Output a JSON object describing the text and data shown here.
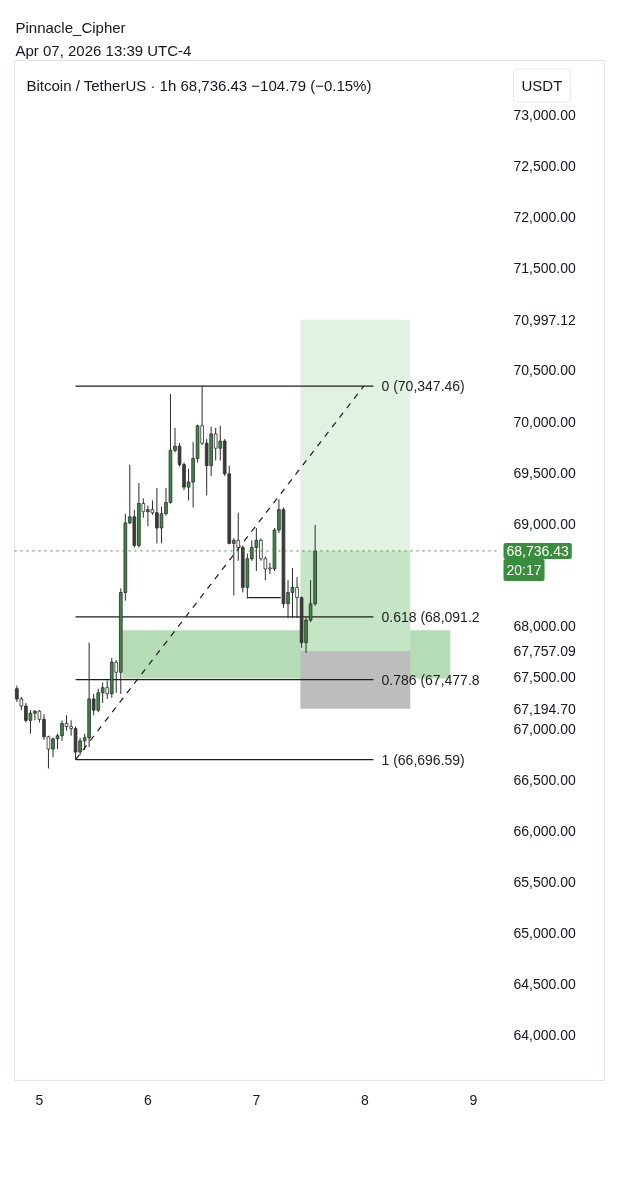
{
  "chart_data": {
    "type": "candlestick",
    "title": "Bitcoin / TetherUS · 1h 68,736.43 −104.79 (−0.15%)",
    "ylabel": "USDT",
    "annotations": [
      "Pinnacle_Cipher",
      "Apr 07, 2026 13:39 UTC-4"
    ],
    "x": [
      4.792,
      4.833,
      4.875,
      4.917,
      4.958,
      5.0,
      5.042,
      5.083,
      5.125,
      5.167,
      5.208,
      5.25,
      5.292,
      5.333,
      5.375,
      5.417,
      5.458,
      5.5,
      5.542,
      5.583,
      5.625,
      5.667,
      5.708,
      5.75,
      5.792,
      5.833,
      5.875,
      5.917,
      5.958,
      6.0,
      6.042,
      6.083,
      6.125,
      6.167,
      6.208,
      6.25,
      6.292,
      6.333,
      6.375,
      6.417,
      6.458,
      6.5,
      6.542,
      6.583,
      6.625,
      6.667,
      6.708,
      6.75,
      6.792,
      6.833,
      6.875,
      6.917,
      6.958,
      7.0,
      7.042,
      7.083,
      7.125,
      7.167,
      7.208,
      7.25,
      7.292,
      7.333,
      7.375,
      7.417,
      7.458,
      7.5,
      7.542
    ],
    "ohlc": [
      [
        67390,
        67420,
        67260,
        67290
      ],
      [
        67290,
        67310,
        67180,
        67220
      ],
      [
        67220,
        67250,
        67060,
        67080
      ],
      [
        67080,
        67180,
        66950,
        67150
      ],
      [
        67150,
        67180,
        67080,
        67170
      ],
      [
        67170,
        67180,
        67060,
        67090
      ],
      [
        67090,
        67140,
        66890,
        66920
      ],
      [
        66920,
        66930,
        66610,
        66800
      ],
      [
        66800,
        66910,
        66720,
        66900
      ],
      [
        66900,
        66950,
        66800,
        66930
      ],
      [
        66930,
        67080,
        66880,
        67050
      ],
      [
        67050,
        67130,
        66980,
        67020
      ],
      [
        67020,
        67080,
        66930,
        67000
      ],
      [
        67000,
        67020,
        66700,
        66770
      ],
      [
        66770,
        66910,
        66740,
        66880
      ],
      [
        66880,
        66950,
        66790,
        66910
      ],
      [
        66910,
        67840,
        66820,
        67290
      ],
      [
        67290,
        67340,
        67130,
        67180
      ],
      [
        67180,
        67390,
        67160,
        67350
      ],
      [
        67350,
        67450,
        67250,
        67400
      ],
      [
        67400,
        67470,
        67290,
        67340
      ],
      [
        67340,
        67690,
        67300,
        67650
      ],
      [
        67650,
        67670,
        67350,
        67550
      ],
      [
        67550,
        68370,
        67340,
        68330
      ],
      [
        68330,
        69100,
        68250,
        69010
      ],
      [
        69010,
        69580,
        69000,
        69070
      ],
      [
        69070,
        69140,
        68770,
        68790
      ],
      [
        68790,
        69400,
        68770,
        69200
      ],
      [
        69200,
        69250,
        69060,
        69120
      ],
      [
        69120,
        69180,
        68980,
        69140
      ],
      [
        69140,
        69230,
        69090,
        69110
      ],
      [
        69110,
        69350,
        68810,
        68960
      ],
      [
        68960,
        69170,
        68810,
        69100
      ],
      [
        69100,
        69350,
        69080,
        69210
      ],
      [
        69210,
        70270,
        69200,
        69720
      ],
      [
        69720,
        69940,
        69700,
        69760
      ],
      [
        69760,
        69790,
        69560,
        69580
      ],
      [
        69580,
        69600,
        69330,
        69360
      ],
      [
        69360,
        69540,
        69230,
        69410
      ],
      [
        69410,
        69800,
        69160,
        69640
      ],
      [
        69640,
        69970,
        69600,
        69960
      ],
      [
        69960,
        70350,
        69770,
        69790
      ],
      [
        69790,
        69830,
        69280,
        69570
      ],
      [
        69570,
        69950,
        69470,
        69880
      ],
      [
        69880,
        69940,
        69620,
        69740
      ],
      [
        69740,
        69960,
        69620,
        69810
      ],
      [
        69810,
        69830,
        69470,
        69490
      ],
      [
        69490,
        69570,
        68800,
        68810
      ],
      [
        68810,
        68860,
        68300,
        68840
      ],
      [
        68840,
        69110,
        68640,
        68770
      ],
      [
        68770,
        68790,
        68330,
        68380
      ],
      [
        68380,
        68710,
        68270,
        68660
      ],
      [
        68660,
        68840,
        68640,
        68770
      ],
      [
        68770,
        68960,
        68540,
        68840
      ],
      [
        68840,
        68860,
        68640,
        68660
      ],
      [
        68660,
        68680,
        68450,
        68560
      ],
      [
        68570,
        68620,
        68510,
        68560
      ],
      [
        68560,
        68960,
        68540,
        68940
      ],
      [
        68940,
        69240,
        68910,
        69140
      ],
      [
        69140,
        69160,
        68180,
        68220
      ],
      [
        68220,
        68450,
        68080,
        68330
      ],
      [
        68330,
        68570,
        68080,
        68380
      ],
      [
        68380,
        68480,
        68080,
        68280
      ],
      [
        68280,
        68290,
        67790,
        67840
      ],
      [
        67840,
        68090,
        67740,
        68060
      ],
      [
        68060,
        68450,
        68040,
        68220
      ],
      [
        68220,
        68990,
        68200,
        68736.43
      ]
    ],
    "colors": [
      "#3b3b3b",
      "#ffffff",
      "#3b3b3b",
      "#388e3c",
      "#388e3c",
      "#ffffff",
      "#3b3b3b",
      "#ffffff",
      "#388e3c",
      "#388e3c",
      "#388e3c",
      "#ffffff",
      "#ffffff",
      "#3b3b3b",
      "#388e3c",
      "#388e3c",
      "#388e3c",
      "#3b3b3b",
      "#388e3c",
      "#388e3c",
      "#ffffff",
      "#388e3c",
      "#ffffff",
      "#388e3c",
      "#388e3c",
      "#388e3c",
      "#3b3b3b",
      "#388e3c",
      "#ffffff",
      "#388e3c",
      "#ffffff",
      "#3b3b3b",
      "#388e3c",
      "#388e3c",
      "#388e3c",
      "#388e3c",
      "#3b3b3b",
      "#3b3b3b",
      "#388e3c",
      "#388e3c",
      "#388e3c",
      "#ffffff",
      "#3b3b3b",
      "#388e3c",
      "#ffffff",
      "#388e3c",
      "#3b3b3b",
      "#3b3b3b",
      "#388e3c",
      "#ffffff",
      "#3b3b3b",
      "#388e3c",
      "#388e3c",
      "#388e3c",
      "#ffffff",
      "#ffffff",
      "#ffffff",
      "#388e3c",
      "#388e3c",
      "#3b3b3b",
      "#388e3c",
      "#388e3c",
      "#ffffff",
      "#3b3b3b",
      "#388e3c",
      "#388e3c",
      "#388e3c"
    ],
    "xlim": [
      4.77,
      10.21
    ],
    "ylim": [
      63560,
      73530
    ],
    "xticks": [
      5,
      6,
      7,
      8,
      9
    ],
    "yticks": [
      {
        "value": 64000,
        "label": "64,000.00"
      },
      {
        "value": 64500,
        "label": "64,500.00"
      },
      {
        "value": 65000,
        "label": "65,000.00"
      },
      {
        "value": 65500,
        "label": "65,500.00"
      },
      {
        "value": 66000,
        "label": "66,000.00"
      },
      {
        "value": 66500,
        "label": "66,500.00"
      },
      {
        "value": 67000,
        "label": "67,000.00"
      },
      {
        "value": 67194.7,
        "label": "67,194.70"
      },
      {
        "value": 67500,
        "label": "67,500.00"
      },
      {
        "value": 67757.09,
        "label": "67,757.09"
      },
      {
        "value": 68000,
        "label": "68,000.00"
      },
      {
        "value": 69000,
        "label": "69,000.00"
      },
      {
        "value": 69500,
        "label": "69,500.00"
      },
      {
        "value": 70000,
        "label": "70,000.00"
      },
      {
        "value": 70500,
        "label": "70,500.00"
      },
      {
        "value": 70997.12,
        "label": "70,997.12"
      },
      {
        "value": 71500,
        "label": "71,500.00"
      },
      {
        "value": 72000,
        "label": "72,000.00"
      },
      {
        "value": 72500,
        "label": "72,500.00"
      },
      {
        "value": 73000,
        "label": "73,000.00"
      }
    ],
    "series": [
      {
        "type": "line",
        "color": "#b5dcb6",
        "x": [
          5.765,
          8.788
        ],
        "values": [
          null,
          null
        ],
        "lower": [
          67490,
          67490
        ],
        "upper": [
          67960,
          67960
        ]
      },
      {
        "type": "line",
        "color": "#e1f1e2",
        "x": [
          7.406,
          8.419
        ],
        "values": [
          null,
          null
        ],
        "lower": [
          68736.43,
          68736.43
        ],
        "upper": [
          70997.12,
          70997.12
        ]
      },
      {
        "type": "line",
        "color": "#c6e5c7",
        "x": [
          7.406,
          8.419
        ],
        "values": [
          null,
          null
        ],
        "lower": [
          67757.09,
          67757.09
        ],
        "upper": [
          68736.43,
          68736.43
        ]
      },
      {
        "type": "line",
        "color": "#bdbdbd",
        "x": [
          7.406,
          8.419
        ],
        "values": [
          null,
          null
        ],
        "lower": [
          67194.7,
          67194.7
        ],
        "upper": [
          67757.09,
          67757.09
        ]
      },
      {
        "type": "line",
        "color": "#1e1e1e",
        "line_style": "dashed",
        "x": [
          5.333,
          7.99
        ],
        "values": [
          66696.59,
          70347.46
        ]
      },
      {
        "type": "line",
        "color": "#1e1e1e",
        "x": [
          6.925,
          7.225
        ],
        "values": [
          68280,
          68280
        ]
      },
      {
        "type": "line",
        "name": "0 (70,347.46)",
        "color": "#1e1e1e",
        "x": [
          5.333,
          8.08
        ],
        "values": [
          70347.46,
          70347.46
        ]
      },
      {
        "type": "line",
        "name": "0.618 (68,091.2",
        "color": "#1e1e1e",
        "x": [
          5.333,
          8.08
        ],
        "values": [
          68091.2,
          68091.2
        ]
      },
      {
        "type": "line",
        "name": "0.786 (67,477.8",
        "color": "#1e1e1e",
        "x": [
          5.333,
          8.08
        ],
        "values": [
          67477.8,
          67477.8
        ]
      },
      {
        "type": "line",
        "name": "1 (66,696.59)",
        "color": "#1e1e1e",
        "x": [
          5.333,
          8.08
        ],
        "values": [
          66696.59,
          66696.59
        ]
      }
    ],
    "ref_lines": [
      {
        "axis": "y",
        "value": 68736.43,
        "label": "68,736.43\n20:17",
        "color": "#388e3c",
        "line_style": "dotted"
      }
    ]
  }
}
